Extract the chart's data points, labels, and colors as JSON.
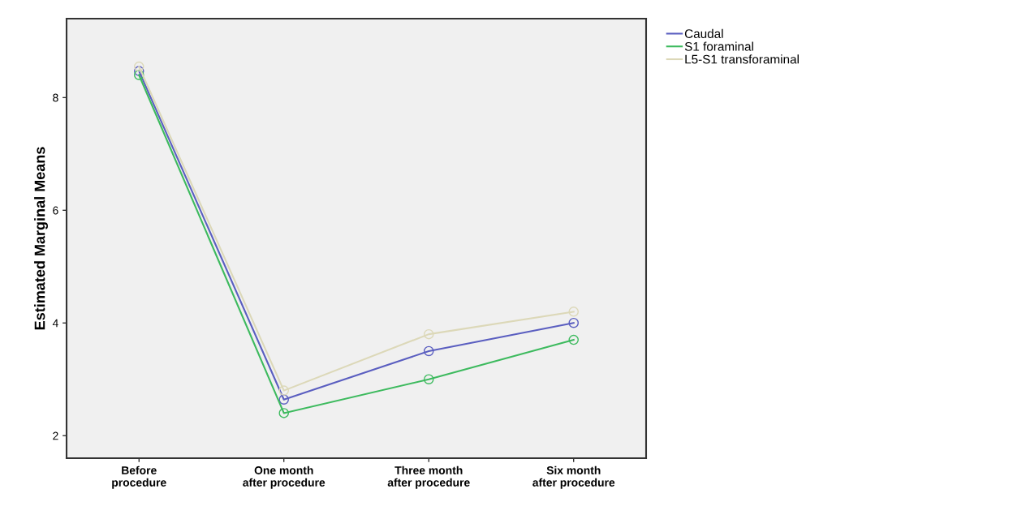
{
  "chart_data": {
    "type": "line",
    "ylabel": "Estimated Marginal Means",
    "categories": [
      "Before\nprocedure",
      "One month\nafter procedure",
      "Three month\nafter procedure",
      "Six month\nafter procedure"
    ],
    "series": [
      {
        "name": "Caudal",
        "color": "#5a5ec0",
        "values": [
          8.47,
          2.64,
          3.5,
          4.0
        ]
      },
      {
        "name": "S1 foraminal",
        "color": "#3dba5e",
        "values": [
          8.4,
          2.4,
          3.0,
          3.7
        ]
      },
      {
        "name": "L5-S1 transforaminal",
        "color": "#dcd8b8",
        "values": [
          8.55,
          2.8,
          3.8,
          4.2
        ]
      }
    ],
    "ylim": [
      1.6,
      9.4
    ],
    "yticks": [
      2,
      4,
      6,
      8
    ],
    "grid": false,
    "legend": "top right",
    "marker": "circle",
    "line_style": "solid"
  }
}
